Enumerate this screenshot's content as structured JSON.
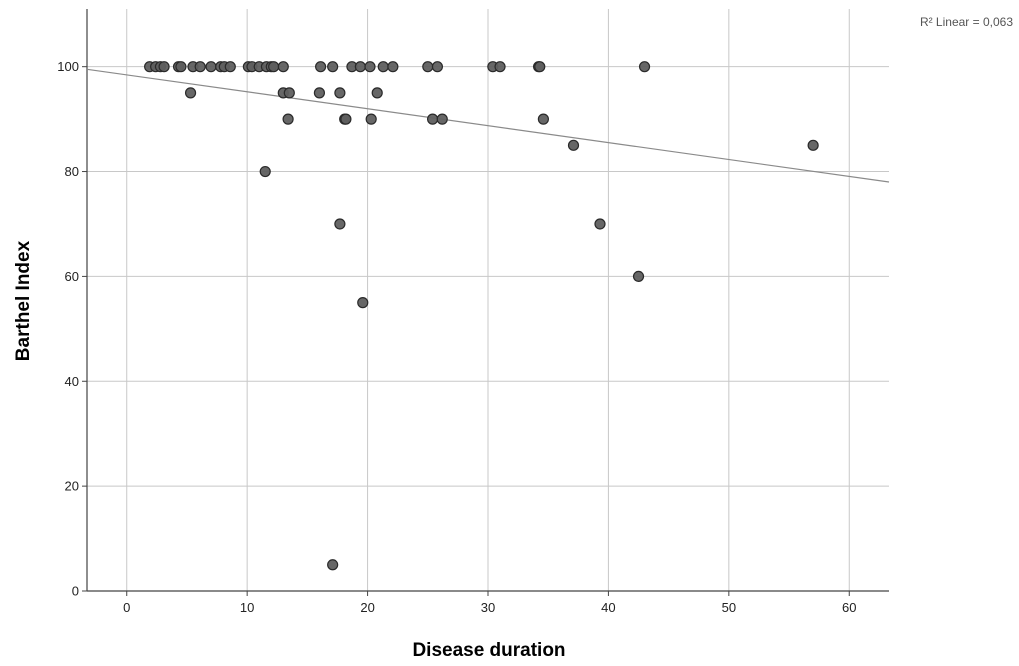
{
  "chart_data": {
    "type": "scatter",
    "xlabel": "Disease duration",
    "ylabel": "Barthel Index",
    "annotation": "R² Linear = 0,063",
    "xlim": [
      -3.3,
      63.3
    ],
    "ylim": [
      0,
      111
    ],
    "xticks": [
      0,
      10,
      20,
      30,
      40,
      50,
      60
    ],
    "yticks": [
      0,
      20,
      40,
      60,
      80,
      100
    ],
    "grid": true,
    "fit_line": {
      "x": [
        -3.3,
        63.3
      ],
      "y": [
        99.5,
        78.0
      ]
    },
    "colors": {
      "point_fill": "#5f5f5f",
      "point_stroke": "#2a2a2a",
      "grid": "#c8c8c8",
      "fit": "#8a8a8a",
      "axis": "#444444"
    },
    "points": [
      {
        "x": 1.9,
        "y": 100
      },
      {
        "x": 2.4,
        "y": 100
      },
      {
        "x": 2.8,
        "y": 100
      },
      {
        "x": 3.1,
        "y": 100
      },
      {
        "x": 4.3,
        "y": 100
      },
      {
        "x": 4.5,
        "y": 100
      },
      {
        "x": 5.3,
        "y": 95
      },
      {
        "x": 5.5,
        "y": 100
      },
      {
        "x": 6.1,
        "y": 100
      },
      {
        "x": 7.0,
        "y": 100
      },
      {
        "x": 7.8,
        "y": 100
      },
      {
        "x": 8.1,
        "y": 100
      },
      {
        "x": 8.6,
        "y": 100
      },
      {
        "x": 10.1,
        "y": 100
      },
      {
        "x": 10.4,
        "y": 100
      },
      {
        "x": 11.0,
        "y": 100
      },
      {
        "x": 11.6,
        "y": 100
      },
      {
        "x": 11.5,
        "y": 80
      },
      {
        "x": 12.0,
        "y": 100
      },
      {
        "x": 12.2,
        "y": 100
      },
      {
        "x": 13.0,
        "y": 100
      },
      {
        "x": 13.0,
        "y": 95
      },
      {
        "x": 13.5,
        "y": 95
      },
      {
        "x": 13.4,
        "y": 90
      },
      {
        "x": 16.0,
        "y": 95
      },
      {
        "x": 16.1,
        "y": 100
      },
      {
        "x": 17.1,
        "y": 100
      },
      {
        "x": 17.7,
        "y": 95
      },
      {
        "x": 17.7,
        "y": 70
      },
      {
        "x": 18.1,
        "y": 90
      },
      {
        "x": 18.2,
        "y": 90
      },
      {
        "x": 18.7,
        "y": 100
      },
      {
        "x": 19.4,
        "y": 100
      },
      {
        "x": 19.6,
        "y": 55
      },
      {
        "x": 17.1,
        "y": 5
      },
      {
        "x": 20.2,
        "y": 100
      },
      {
        "x": 20.3,
        "y": 90
      },
      {
        "x": 20.8,
        "y": 95
      },
      {
        "x": 21.3,
        "y": 100
      },
      {
        "x": 22.1,
        "y": 100
      },
      {
        "x": 25.0,
        "y": 100
      },
      {
        "x": 25.4,
        "y": 90
      },
      {
        "x": 25.8,
        "y": 100
      },
      {
        "x": 26.2,
        "y": 90
      },
      {
        "x": 30.4,
        "y": 100
      },
      {
        "x": 31.0,
        "y": 100
      },
      {
        "x": 34.2,
        "y": 100
      },
      {
        "x": 34.3,
        "y": 100
      },
      {
        "x": 34.6,
        "y": 90
      },
      {
        "x": 37.1,
        "y": 85
      },
      {
        "x": 39.3,
        "y": 70
      },
      {
        "x": 42.5,
        "y": 60
      },
      {
        "x": 43.0,
        "y": 100
      },
      {
        "x": 57.0,
        "y": 85
      }
    ]
  }
}
